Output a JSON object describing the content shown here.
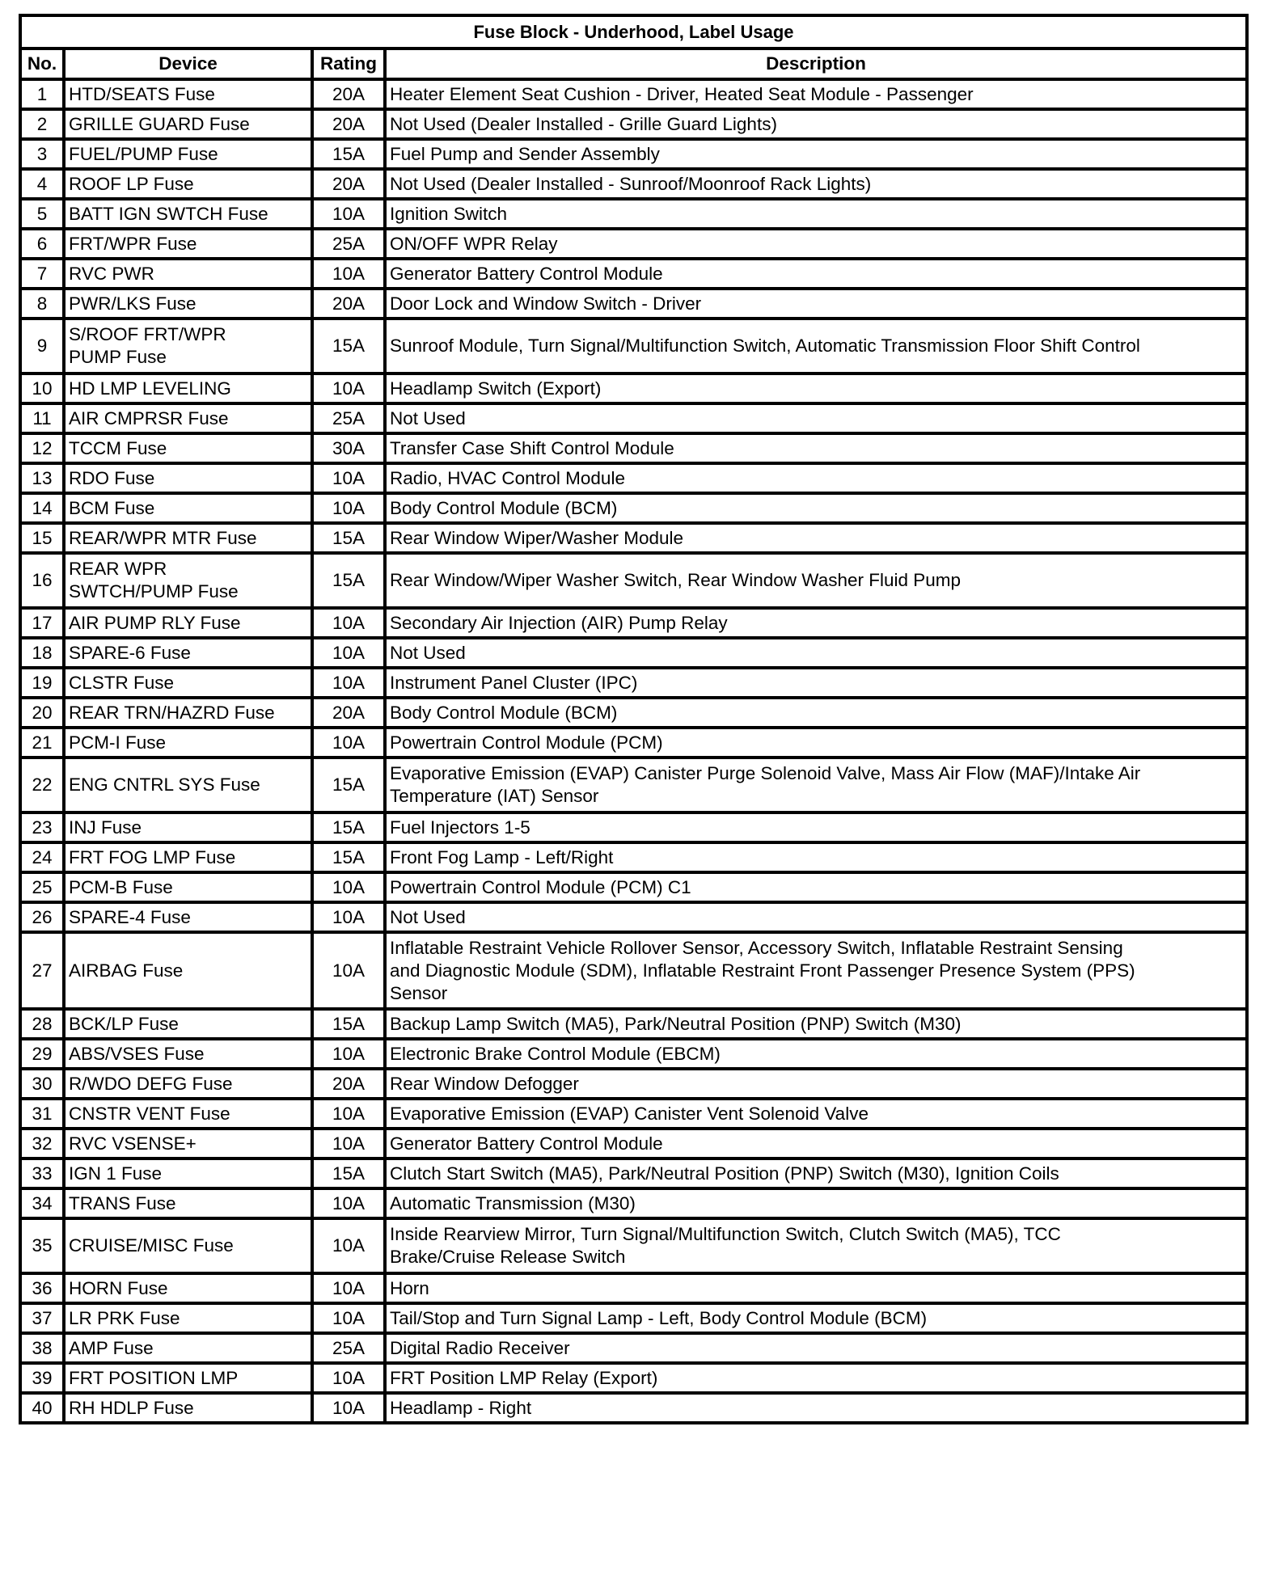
{
  "title": "Fuse Block - Underhood, Label Usage",
  "headers": {
    "no": "No.",
    "device": "Device",
    "rating": "Rating",
    "description": "Description"
  },
  "rows": [
    {
      "no": "1",
      "device": "HTD/SEATS Fuse",
      "rating": "20A",
      "description": "Heater Element Seat Cushion - Driver, Heated Seat Module - Passenger"
    },
    {
      "no": "2",
      "device": "GRILLE GUARD Fuse",
      "rating": "20A",
      "description": "Not Used (Dealer Installed - Grille Guard Lights)"
    },
    {
      "no": "3",
      "device": "FUEL/PUMP Fuse",
      "rating": "15A",
      "description": "Fuel Pump and Sender Assembly"
    },
    {
      "no": "4",
      "device": "ROOF LP Fuse",
      "rating": "20A",
      "description": "Not Used (Dealer Installed - Sunroof/Moonroof Rack Lights)"
    },
    {
      "no": "5",
      "device": "BATT IGN SWTCH Fuse",
      "rating": "10A",
      "description": "Ignition Switch"
    },
    {
      "no": "6",
      "device": "FRT/WPR Fuse",
      "rating": "25A",
      "description": "ON/OFF WPR Relay"
    },
    {
      "no": "7",
      "device": "RVC PWR",
      "rating": "10A",
      "description": "Generator Battery Control Module"
    },
    {
      "no": "8",
      "device": "PWR/LKS Fuse",
      "rating": "20A",
      "description": "Door Lock and Window Switch - Driver"
    },
    {
      "no": "9",
      "device": "S/ROOF FRT/WPR\nPUMP Fuse",
      "rating": "15A",
      "description": "Sunroof Module, Turn Signal/Multifunction Switch, Automatic Transmission Floor Shift Control"
    },
    {
      "no": "10",
      "device": "HD LMP LEVELING",
      "rating": "10A",
      "description": "Headlamp Switch (Export)"
    },
    {
      "no": "11",
      "device": "AIR CMPRSR Fuse",
      "rating": "25A",
      "description": "Not Used"
    },
    {
      "no": "12",
      "device": "TCCM Fuse",
      "rating": "30A",
      "description": "Transfer Case Shift Control Module"
    },
    {
      "no": "13",
      "device": "RDO Fuse",
      "rating": "10A",
      "description": "Radio, HVAC Control Module"
    },
    {
      "no": "14",
      "device": "BCM Fuse",
      "rating": "10A",
      "description": "Body Control Module (BCM)"
    },
    {
      "no": "15",
      "device": "REAR/WPR MTR Fuse",
      "rating": "15A",
      "description": "Rear Window Wiper/Washer Module"
    },
    {
      "no": "16",
      "device": "REAR WPR\nSWTCH/PUMP Fuse",
      "rating": "15A",
      "description": "Rear Window/Wiper Washer Switch, Rear Window Washer Fluid Pump"
    },
    {
      "no": "17",
      "device": "AIR PUMP RLY Fuse",
      "rating": "10A",
      "description": "Secondary Air Injection (AIR) Pump Relay"
    },
    {
      "no": "18",
      "device": "SPARE-6 Fuse",
      "rating": "10A",
      "description": "Not Used"
    },
    {
      "no": "19",
      "device": "CLSTR Fuse",
      "rating": "10A",
      "description": "Instrument Panel Cluster (IPC)"
    },
    {
      "no": "20",
      "device": "REAR TRN/HAZRD Fuse",
      "rating": "20A",
      "description": "Body Control Module (BCM)"
    },
    {
      "no": "21",
      "device": "PCM-I Fuse",
      "rating": "10A",
      "description": "Powertrain Control Module (PCM)"
    },
    {
      "no": "22",
      "device": "ENG CNTRL SYS Fuse",
      "rating": "15A",
      "description": "Evaporative Emission (EVAP) Canister Purge Solenoid Valve, Mass Air Flow (MAF)/Intake Air\nTemperature (IAT) Sensor"
    },
    {
      "no": "23",
      "device": "INJ Fuse",
      "rating": "15A",
      "description": "Fuel Injectors 1-5"
    },
    {
      "no": "24",
      "device": "FRT FOG LMP Fuse",
      "rating": "15A",
      "description": "Front Fog Lamp - Left/Right"
    },
    {
      "no": "25",
      "device": "PCM-B Fuse",
      "rating": "10A",
      "description": "Powertrain Control Module (PCM) C1"
    },
    {
      "no": "26",
      "device": "SPARE-4 Fuse",
      "rating": "10A",
      "description": "Not Used"
    },
    {
      "no": "27",
      "device": "AIRBAG Fuse",
      "rating": "10A",
      "description": "Inflatable Restraint Vehicle Rollover Sensor, Accessory Switch, Inflatable Restraint Sensing\nand Diagnostic Module (SDM), Inflatable Restraint Front Passenger Presence System (PPS)\nSensor"
    },
    {
      "no": "28",
      "device": "BCK/LP Fuse",
      "rating": "15A",
      "description": "Backup Lamp Switch (MA5), Park/Neutral Position (PNP) Switch (M30)"
    },
    {
      "no": "29",
      "device": "ABS/VSES Fuse",
      "rating": "10A",
      "description": "Electronic Brake Control Module (EBCM)"
    },
    {
      "no": "30",
      "device": "R/WDO DEFG Fuse",
      "rating": "20A",
      "description": "Rear Window Defogger"
    },
    {
      "no": "31",
      "device": "CNSTR VENT Fuse",
      "rating": "10A",
      "description": "Evaporative Emission (EVAP) Canister Vent Solenoid Valve"
    },
    {
      "no": "32",
      "device": "RVC VSENSE+",
      "rating": "10A",
      "description": "Generator Battery Control Module"
    },
    {
      "no": "33",
      "device": "IGN 1 Fuse",
      "rating": "15A",
      "description": "Clutch Start Switch (MA5), Park/Neutral Position (PNP) Switch (M30), Ignition Coils"
    },
    {
      "no": "34",
      "device": "TRANS Fuse",
      "rating": "10A",
      "description": "Automatic Transmission (M30)"
    },
    {
      "no": "35",
      "device": "CRUISE/MISC Fuse",
      "rating": "10A",
      "description": "Inside Rearview Mirror, Turn Signal/Multifunction Switch, Clutch Switch (MA5), TCC\nBrake/Cruise Release Switch"
    },
    {
      "no": "36",
      "device": "HORN Fuse",
      "rating": "10A",
      "description": "Horn"
    },
    {
      "no": "37",
      "device": "LR PRK Fuse",
      "rating": "10A",
      "description": "Tail/Stop and Turn Signal Lamp - Left, Body Control Module (BCM)"
    },
    {
      "no": "38",
      "device": "AMP Fuse",
      "rating": "25A",
      "description": "Digital Radio Receiver"
    },
    {
      "no": "39",
      "device": "FRT POSITION LMP",
      "rating": "10A",
      "description": "FRT Position LMP Relay (Export)"
    },
    {
      "no": "40",
      "device": "RH HDLP Fuse",
      "rating": "10A",
      "description": "Headlamp - Right"
    }
  ]
}
